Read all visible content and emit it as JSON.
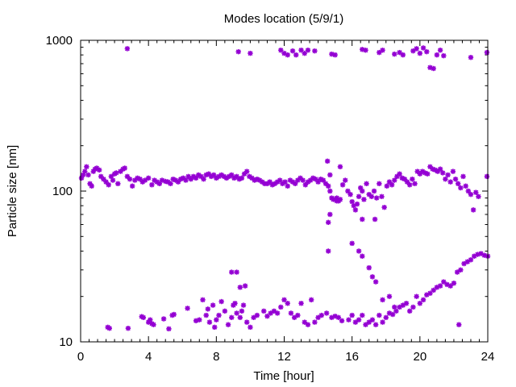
{
  "chart_data": {
    "type": "scatter",
    "title": "Modes location (5/9/1)",
    "xlabel": "Time [hour]",
    "ylabel": "Particle size [nm]",
    "xlim": [
      0,
      24
    ],
    "ylim": [
      10,
      1000
    ],
    "yscale": "log",
    "grid": false,
    "xticks": [
      0,
      4,
      8,
      12,
      16,
      20,
      24
    ],
    "xtick_labels": [
      "0",
      "4",
      "8",
      "12",
      "16",
      "20",
      "24"
    ],
    "yticks": [
      10,
      100,
      1000
    ],
    "ytick_labels": [
      "10",
      "100",
      "1000"
    ],
    "marker_color": "#9400d3",
    "series": [
      {
        "marker": "asterisk",
        "points": [
          [
            0.05,
            122
          ],
          [
            0.15,
            128
          ],
          [
            0.25,
            135
          ],
          [
            0.35,
            145
          ],
          [
            0.45,
            128
          ],
          [
            0.55,
            112
          ],
          [
            0.65,
            108
          ],
          [
            0.75,
            135
          ],
          [
            0.85,
            140
          ],
          [
            0.95,
            142
          ],
          [
            1.1,
            138
          ],
          [
            1.2,
            125
          ],
          [
            1.35,
            120
          ],
          [
            1.5,
            115
          ],
          [
            1.65,
            110
          ],
          [
            1.8,
            125
          ],
          [
            1.9,
            118
          ],
          [
            2.0,
            130
          ],
          [
            2.1,
            132
          ],
          [
            2.2,
            112
          ],
          [
            2.35,
            135
          ],
          [
            2.5,
            140
          ],
          [
            2.6,
            142
          ],
          [
            2.75,
            125
          ],
          [
            2.9,
            120
          ],
          [
            3.05,
            108
          ],
          [
            3.2,
            118
          ],
          [
            3.35,
            122
          ],
          [
            3.5,
            120
          ],
          [
            3.65,
            115
          ],
          [
            3.8,
            118
          ],
          [
            4.0,
            122
          ],
          [
            4.2,
            110
          ],
          [
            4.35,
            118
          ],
          [
            4.5,
            115
          ],
          [
            4.65,
            112
          ],
          [
            4.8,
            118
          ],
          [
            5.0,
            116
          ],
          [
            5.15,
            115
          ],
          [
            5.3,
            112
          ],
          [
            5.45,
            120
          ],
          [
            5.6,
            118
          ],
          [
            5.75,
            115
          ],
          [
            5.9,
            120
          ],
          [
            6.05,
            122
          ],
          [
            6.2,
            118
          ],
          [
            6.35,
            125
          ],
          [
            6.5,
            120
          ],
          [
            6.65,
            125
          ],
          [
            6.8,
            122
          ],
          [
            6.95,
            128
          ],
          [
            7.1,
            125
          ],
          [
            7.25,
            120
          ],
          [
            7.4,
            128
          ],
          [
            7.55,
            130
          ],
          [
            7.7,
            125
          ],
          [
            7.85,
            128
          ],
          [
            8.0,
            122
          ],
          [
            8.15,
            125
          ],
          [
            8.3,
            128
          ],
          [
            8.45,
            125
          ],
          [
            8.6,
            122
          ],
          [
            8.75,
            125
          ],
          [
            8.9,
            128
          ],
          [
            9.05,
            122
          ],
          [
            9.2,
            125
          ],
          [
            9.35,
            120
          ],
          [
            9.5,
            122
          ],
          [
            9.65,
            130
          ],
          [
            9.8,
            135
          ],
          [
            9.95,
            125
          ],
          [
            10.1,
            122
          ],
          [
            10.25,
            118
          ],
          [
            10.4,
            120
          ],
          [
            10.55,
            118
          ],
          [
            10.7,
            115
          ],
          [
            10.85,
            112
          ],
          [
            11.0,
            112
          ],
          [
            11.15,
            115
          ],
          [
            11.3,
            110
          ],
          [
            11.45,
            112
          ],
          [
            11.6,
            115
          ],
          [
            11.75,
            118
          ],
          [
            11.9,
            112
          ],
          [
            12.05,
            115
          ],
          [
            12.2,
            108
          ],
          [
            12.35,
            118
          ],
          [
            12.5,
            115
          ],
          [
            12.65,
            112
          ],
          [
            12.8,
            118
          ],
          [
            12.95,
            122
          ],
          [
            13.1,
            118
          ],
          [
            13.25,
            110
          ],
          [
            13.4,
            115
          ],
          [
            13.55,
            118
          ],
          [
            13.7,
            122
          ],
          [
            13.85,
            120
          ],
          [
            14.0,
            115
          ],
          [
            14.15,
            120
          ],
          [
            14.3,
            118
          ],
          [
            14.45,
            112
          ],
          [
            14.6,
            108
          ],
          [
            14.7,
            100
          ],
          [
            14.8,
            90
          ],
          [
            14.9,
            88
          ],
          [
            15.0,
            88
          ],
          [
            15.1,
            90
          ],
          [
            15.2,
            86
          ],
          [
            15.3,
            88
          ],
          [
            15.45,
            110
          ],
          [
            15.6,
            118
          ],
          [
            15.75,
            100
          ],
          [
            15.9,
            95
          ],
          [
            16.0,
            85
          ],
          [
            16.1,
            80
          ],
          [
            16.2,
            75
          ],
          [
            16.3,
            82
          ],
          [
            16.4,
            92
          ],
          [
            16.5,
            105
          ],
          [
            16.6,
            100
          ],
          [
            16.7,
            88
          ],
          [
            16.85,
            112
          ],
          [
            17.0,
            95
          ],
          [
            17.15,
            92
          ],
          [
            17.3,
            100
          ],
          [
            17.45,
            90
          ],
          [
            17.6,
            112
          ],
          [
            17.75,
            92
          ],
          [
            17.9,
            78
          ],
          [
            18.05,
            108
          ],
          [
            18.2,
            115
          ],
          [
            18.35,
            110
          ],
          [
            18.5,
            118
          ],
          [
            18.65,
            125
          ],
          [
            18.8,
            130
          ],
          [
            18.95,
            122
          ],
          [
            19.1,
            120
          ],
          [
            19.25,
            115
          ],
          [
            19.4,
            110
          ],
          [
            19.55,
            120
          ],
          [
            19.7,
            112
          ],
          [
            19.85,
            135
          ],
          [
            20.0,
            130
          ],
          [
            20.15,
            135
          ],
          [
            20.3,
            132
          ],
          [
            20.45,
            130
          ],
          [
            20.6,
            145
          ],
          [
            20.75,
            140
          ],
          [
            20.9,
            138
          ],
          [
            21.05,
            135
          ],
          [
            21.2,
            140
          ],
          [
            21.35,
            132
          ],
          [
            21.5,
            120
          ],
          [
            21.65,
            128
          ],
          [
            21.8,
            115
          ],
          [
            21.95,
            135
          ],
          [
            22.1,
            120
          ],
          [
            22.25,
            112
          ],
          [
            22.4,
            105
          ],
          [
            22.55,
            125
          ],
          [
            22.7,
            108
          ],
          [
            22.85,
            100
          ],
          [
            23.0,
            95
          ],
          [
            23.15,
            75
          ],
          [
            23.3,
            98
          ],
          [
            23.45,
            92
          ],
          [
            23.95,
            125
          ],
          [
            14.55,
            158
          ],
          [
            14.7,
            128
          ],
          [
            15.3,
            145
          ],
          [
            16.6,
            65
          ],
          [
            17.35,
            65
          ],
          [
            14.6,
            62
          ],
          [
            14.7,
            70
          ],
          [
            15.1,
            86
          ],
          [
            1.6,
            12.5
          ],
          [
            1.7,
            12.3
          ],
          [
            2.8,
            12.3
          ],
          [
            3.6,
            14.7
          ],
          [
            3.7,
            14.5
          ],
          [
            4.0,
            13.5
          ],
          [
            4.1,
            14
          ],
          [
            4.2,
            13.2
          ],
          [
            4.3,
            13
          ],
          [
            4.9,
            14.2
          ],
          [
            5.2,
            12.2
          ],
          [
            5.4,
            15
          ],
          [
            5.5,
            15.2
          ],
          [
            6.3,
            16.7
          ],
          [
            6.8,
            13.8
          ],
          [
            7.0,
            14
          ],
          [
            7.2,
            19
          ],
          [
            7.4,
            15
          ],
          [
            7.5,
            16.5
          ],
          [
            7.6,
            13.5
          ],
          [
            7.8,
            17.5
          ],
          [
            7.9,
            12.5
          ],
          [
            8.0,
            14
          ],
          [
            8.15,
            15
          ],
          [
            8.3,
            18.5
          ],
          [
            8.5,
            16
          ],
          [
            8.7,
            13
          ],
          [
            8.9,
            14.5
          ],
          [
            9.0,
            17.5
          ],
          [
            9.1,
            18
          ],
          [
            9.2,
            15.5
          ],
          [
            9.4,
            14.5
          ],
          [
            9.5,
            16
          ],
          [
            9.6,
            17.5
          ],
          [
            9.8,
            13.5
          ],
          [
            10.0,
            12.5
          ],
          [
            10.2,
            14.5
          ],
          [
            10.4,
            15
          ],
          [
            10.8,
            16
          ],
          [
            11.0,
            14.8
          ],
          [
            11.2,
            15.5
          ],
          [
            11.4,
            16
          ],
          [
            11.6,
            15.5
          ],
          [
            11.8,
            17
          ],
          [
            12.0,
            19
          ],
          [
            12.2,
            18
          ],
          [
            12.4,
            15.5
          ],
          [
            12.6,
            14.5
          ],
          [
            12.8,
            15
          ],
          [
            13.0,
            18
          ],
          [
            13.2,
            13.5
          ],
          [
            13.4,
            13
          ],
          [
            13.6,
            19
          ],
          [
            13.8,
            13.5
          ],
          [
            14.0,
            14.5
          ],
          [
            14.2,
            15
          ],
          [
            14.5,
            15.5
          ],
          [
            14.8,
            14.5
          ],
          [
            15.0,
            14.8
          ],
          [
            15.2,
            14.5
          ],
          [
            15.4,
            13.8
          ],
          [
            15.8,
            14
          ],
          [
            16.0,
            15
          ],
          [
            16.2,
            13.5
          ],
          [
            16.4,
            14
          ],
          [
            16.6,
            15
          ],
          [
            16.8,
            13
          ],
          [
            17.0,
            13.5
          ],
          [
            17.2,
            14
          ],
          [
            17.4,
            13
          ],
          [
            17.6,
            15
          ],
          [
            17.8,
            13.5
          ],
          [
            18.0,
            14.5
          ],
          [
            18.2,
            15.5
          ],
          [
            18.4,
            15.2
          ],
          [
            18.6,
            16
          ],
          [
            18.8,
            17
          ],
          [
            19.0,
            17.5
          ],
          [
            19.2,
            18
          ],
          [
            19.4,
            16
          ],
          [
            19.6,
            17
          ],
          [
            19.8,
            20
          ],
          [
            20.0,
            18
          ],
          [
            20.2,
            19
          ],
          [
            20.4,
            20.5
          ],
          [
            20.6,
            21
          ],
          [
            20.8,
            22
          ],
          [
            21.0,
            23
          ],
          [
            21.2,
            23.5
          ],
          [
            21.4,
            25
          ],
          [
            21.6,
            24
          ],
          [
            21.8,
            23.5
          ],
          [
            22.0,
            24.5
          ],
          [
            22.2,
            29
          ],
          [
            22.4,
            30
          ],
          [
            22.6,
            33
          ],
          [
            22.8,
            34
          ],
          [
            23.0,
            35
          ],
          [
            23.2,
            37
          ],
          [
            23.4,
            38
          ],
          [
            23.6,
            38.5
          ],
          [
            23.8,
            37.5
          ],
          [
            24.0,
            37
          ],
          [
            8.9,
            29
          ],
          [
            9.2,
            29
          ],
          [
            9.4,
            23
          ],
          [
            9.7,
            23.5
          ],
          [
            14.6,
            40
          ],
          [
            16.0,
            45
          ],
          [
            16.4,
            40
          ],
          [
            16.6,
            37
          ],
          [
            17.0,
            31
          ],
          [
            17.2,
            27
          ],
          [
            17.4,
            25
          ],
          [
            17.8,
            19
          ],
          [
            18.2,
            20
          ],
          [
            18.5,
            17
          ],
          [
            22.3,
            13
          ],
          [
            2.75,
            880
          ],
          [
            9.3,
            840
          ],
          [
            10.0,
            820
          ],
          [
            11.8,
            860
          ],
          [
            12.0,
            820
          ],
          [
            12.2,
            800
          ],
          [
            12.5,
            850
          ],
          [
            12.7,
            800
          ],
          [
            13.0,
            860
          ],
          [
            13.2,
            820
          ],
          [
            13.4,
            860
          ],
          [
            13.8,
            850
          ],
          [
            14.8,
            810
          ],
          [
            15.0,
            800
          ],
          [
            16.6,
            870
          ],
          [
            16.8,
            860
          ],
          [
            17.6,
            830
          ],
          [
            17.8,
            860
          ],
          [
            18.5,
            810
          ],
          [
            18.8,
            830
          ],
          [
            19.0,
            800
          ],
          [
            19.6,
            850
          ],
          [
            19.8,
            880
          ],
          [
            20.0,
            820
          ],
          [
            20.2,
            890
          ],
          [
            20.4,
            840
          ],
          [
            20.6,
            660
          ],
          [
            20.8,
            650
          ],
          [
            21.0,
            800
          ],
          [
            21.2,
            860
          ],
          [
            21.4,
            790
          ],
          [
            23.0,
            770
          ],
          [
            23.95,
            830
          ]
        ]
      }
    ]
  }
}
